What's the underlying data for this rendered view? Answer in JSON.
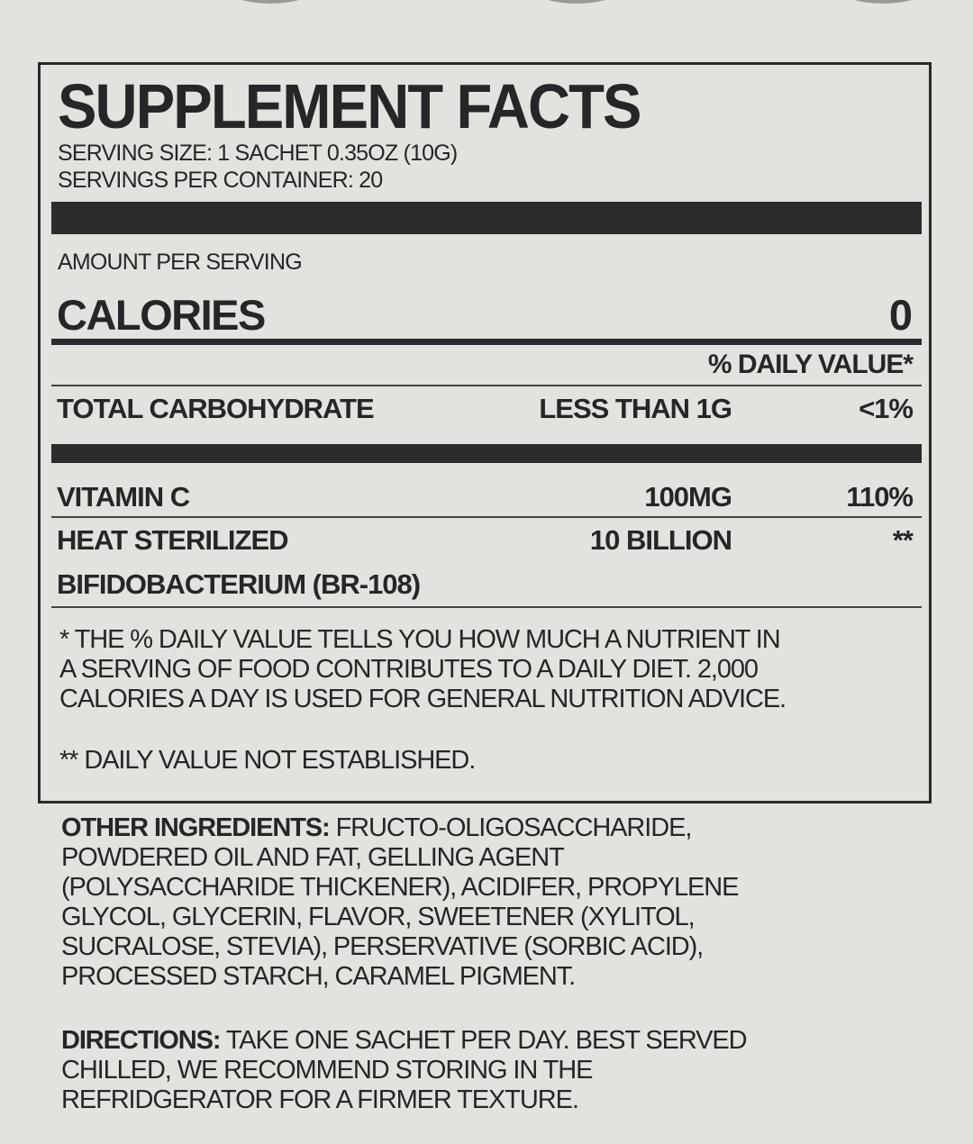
{
  "title": "SUPPLEMENT FACTS",
  "serving_size": "SERVING SIZE: 1 SACHET 0.35OZ (10G)",
  "servings_per_container": "SERVINGS PER CONTAINER: 20",
  "amount_per_serving": "AMOUNT PER SERVING",
  "calories": {
    "label": "CALORIES",
    "value": "0"
  },
  "daily_value_header": "% DAILY VALUE*",
  "rows": [
    {
      "name": "TOTAL CARBOHYDRATE",
      "amount": "LESS THAN 1G",
      "dv": "<1%"
    },
    {
      "name": "VITAMIN C",
      "amount": "100MG",
      "dv": "110%"
    },
    {
      "name": "HEAT STERILIZED",
      "name2": "BIFIDOBACTERIUM (BR-108)",
      "amount": "10 BILLION",
      "dv": "**"
    }
  ],
  "footnote_lines": [
    "* THE % DAILY VALUE TELLS YOU HOW MUCH A NUTRIENT IN",
    "A SERVING OF FOOD CONTRIBUTES TO A DAILY DIET. 2,000",
    "CALORIES A DAY IS USED FOR GENERAL NUTRITION ADVICE."
  ],
  "footnote2": "** DAILY VALUE NOT ESTABLISHED.",
  "other_ingredients": {
    "label": "OTHER INGREDIENTS:",
    "lines": [
      " FRUCTO-OLIGOSACCHARIDE,",
      "POWDERED OIL AND FAT, GELLING AGENT",
      "(POLYSACCHARIDE THICKENER), ACIDIFER, PROPYLENE",
      "GLYCOL, GLYCERIN, FLAVOR, SWEETENER (XYLITOL,",
      "SUCRALOSE, STEVIA), PERSERVATIVE (SORBIC ACID),",
      "PROCESSED STARCH, CARAMEL PIGMENT."
    ]
  },
  "directions": {
    "label": "DIRECTIONS:",
    "lines": [
      " TAKE ONE SACHET PER DAY. BEST SERVED",
      "CHILLED, WE RECOMMEND STORING IN THE",
      "REFRIDGERATOR FOR A FIRMER TEXTURE."
    ]
  }
}
